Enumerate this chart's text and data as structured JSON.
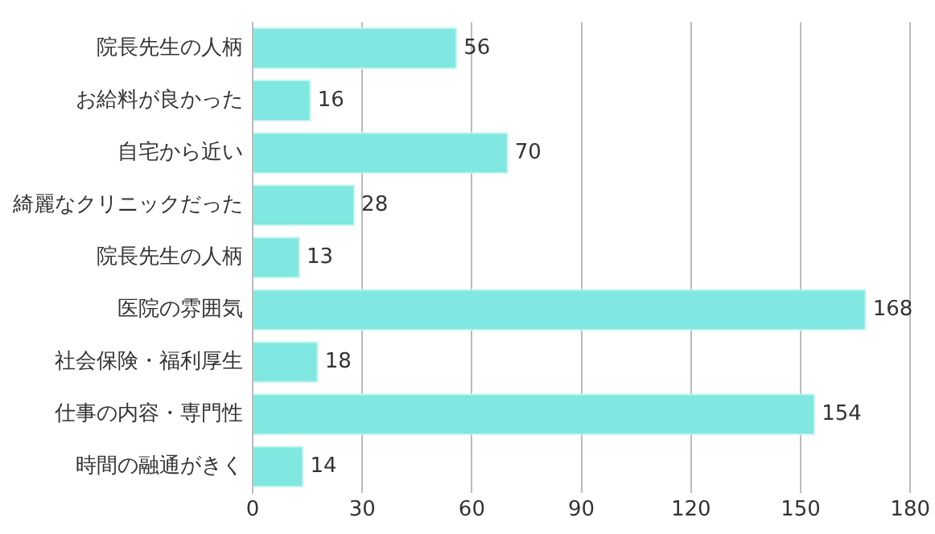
{
  "chart_data": {
    "type": "bar",
    "orientation": "horizontal",
    "categories": [
      "院長先生の人柄",
      "お給料が良かった",
      "自宅から近い",
      "綺麗なクリニックだった",
      "院長先生の人柄",
      "医院の雰囲気",
      "社会保険・福利厚生",
      "仕事の内容・専門性",
      "時間の融通がきく"
    ],
    "values": [
      56,
      16,
      70,
      28,
      13,
      168,
      18,
      154,
      14
    ],
    "color": "#80e8e0",
    "xlim": [
      0,
      180
    ],
    "xticks": [
      0,
      30,
      60,
      90,
      120,
      150,
      180
    ],
    "grid": "x",
    "data_labels": true
  }
}
